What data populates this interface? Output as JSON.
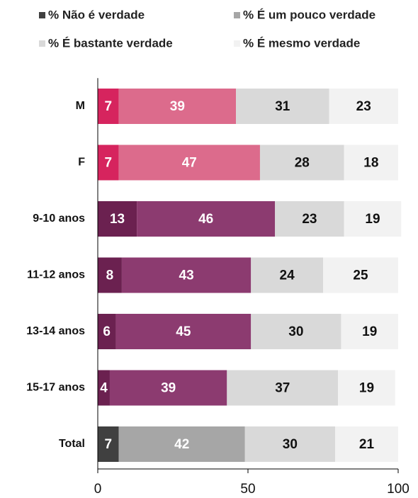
{
  "chart_data": {
    "type": "stacked_barh",
    "categories": [
      "M",
      "F",
      "9-10 anos",
      "11-12 anos",
      "13-14 anos",
      "15-17 anos",
      "Total"
    ],
    "series": [
      {
        "name": "% Não é verdade",
        "color": "#404040",
        "values": [
          7,
          7,
          13,
          8,
          6,
          4,
          7
        ],
        "colors": [
          "#d6245e",
          "#d6245e",
          "#6b2150",
          "#6b2150",
          "#6b2150",
          "#6b2150",
          "#404040"
        ]
      },
      {
        "name": "% É um pouco verdade",
        "color": "#a6a6a6",
        "values": [
          39,
          47,
          46,
          43,
          45,
          39,
          42
        ],
        "colors": [
          "#dc6b8c",
          "#dc6b8c",
          "#8c3b70",
          "#8c3b70",
          "#8c3b70",
          "#8c3b70",
          "#a6a6a6"
        ]
      },
      {
        "name": "% É bastante verdade",
        "color": "#d9d9d9",
        "values": [
          31,
          28,
          23,
          24,
          30,
          37,
          30
        ]
      },
      {
        "name": "% É mesmo verdade",
        "color": "#f2f2f2",
        "values": [
          23,
          18,
          19,
          25,
          19,
          19,
          21
        ]
      }
    ],
    "xlim": [
      0,
      100
    ],
    "xticks": [
      0,
      50,
      100
    ]
  }
}
